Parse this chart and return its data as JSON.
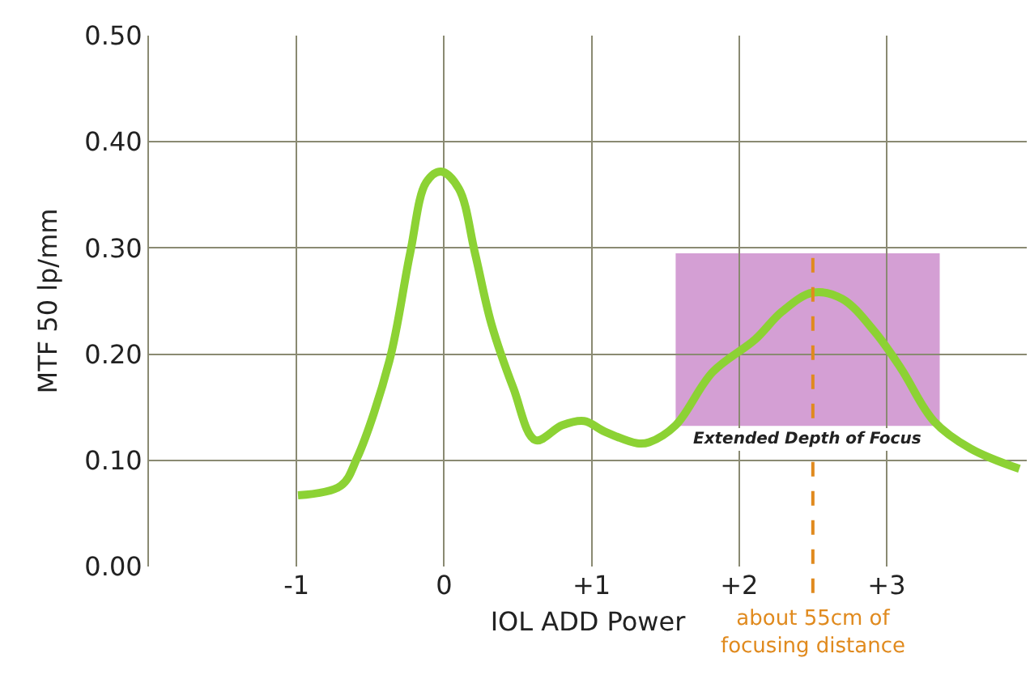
{
  "chart_data": {
    "type": "line",
    "xlabel": "IOL ADD Power",
    "ylabel": "MTF 50 lp/mm",
    "xlim": [
      -2,
      3.95
    ],
    "ylim": [
      0,
      0.5
    ],
    "xticks": [
      {
        "value": -1,
        "label": "-1"
      },
      {
        "value": 0,
        "label": "0"
      },
      {
        "value": 1,
        "label": "+1"
      },
      {
        "value": 2,
        "label": "+2"
      },
      {
        "value": 3,
        "label": "+3"
      }
    ],
    "yticks": [
      {
        "value": 0,
        "label": "0.00"
      },
      {
        "value": 0.1,
        "label": "0.10"
      },
      {
        "value": 0.2,
        "label": "0.20"
      },
      {
        "value": 0.3,
        "label": "0.30"
      },
      {
        "value": 0.4,
        "label": "0.40"
      },
      {
        "value": 0.5,
        "label": "0.50"
      }
    ],
    "grid": true,
    "marker": "none",
    "line_style": "solid",
    "series": [
      {
        "color": "#8cd234",
        "x": [
          -0.99,
          -0.7,
          -0.59,
          -0.37,
          -0.23,
          -0.12,
          -0.02,
          0.1,
          0.21,
          0.32,
          0.47,
          0.62,
          0.8,
          0.95,
          1.09,
          1.31,
          1.39,
          1.57,
          1.82,
          2.11,
          2.29,
          2.5,
          2.7,
          2.92,
          3.1,
          3.32,
          3.57,
          3.9
        ],
        "values": [
          0.067,
          0.076,
          0.102,
          0.194,
          0.295,
          0.362,
          0.372,
          0.356,
          0.295,
          0.229,
          0.168,
          0.119,
          0.133,
          0.137,
          0.127,
          0.116,
          0.117,
          0.133,
          0.183,
          0.214,
          0.24,
          0.258,
          0.252,
          0.221,
          0.186,
          0.137,
          0.111,
          0.092
        ]
      }
    ],
    "bands": [
      {
        "axis": "x",
        "from": 1.57,
        "to": 3.36,
        "label": "Extended Depth of Focus",
        "color": "#b050b0"
      }
    ],
    "ref_lines": [
      {
        "axis": "x",
        "value": 2.5,
        "label": "about 55cm of\nfocusing distance",
        "color": "#e08a1e",
        "line_style": "dashed"
      }
    ]
  }
}
